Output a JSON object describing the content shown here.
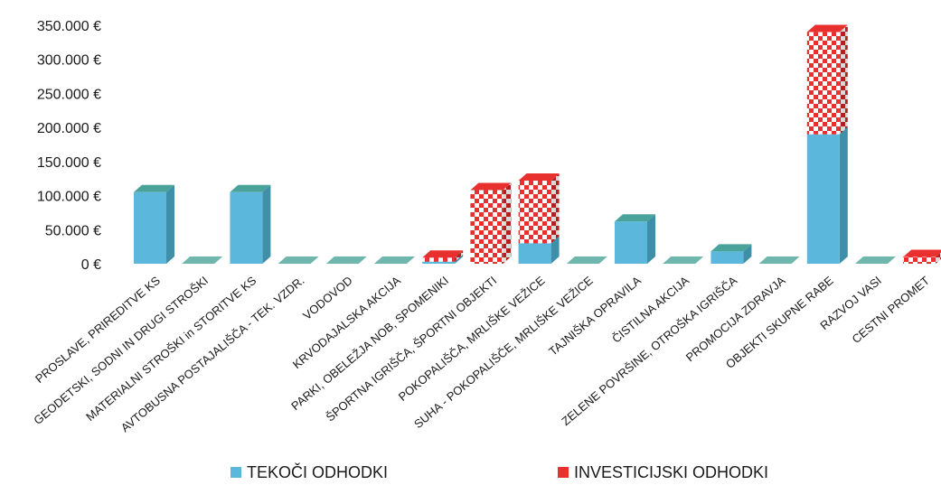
{
  "chart_data": {
    "type": "bar",
    "stacked": true,
    "grid": false,
    "legend_position": "bottom",
    "currency": "€",
    "ylim": [
      0,
      350000
    ],
    "yticks": [
      0,
      50000,
      100000,
      150000,
      200000,
      250000,
      300000,
      350000
    ],
    "ytick_labels": [
      "0 €",
      "50.000 €",
      "100.000 €",
      "150.000 €",
      "200.000 €",
      "250.000 €",
      "300.000 €",
      "350.000 €"
    ],
    "categories": [
      "PROSLAVE, PRIREDITVE KS",
      "GEODETSKI, SODNI IN DRUGI STROŠKI",
      "MATERIALNI STROŠKI in  STORITVE KS",
      "AVTOBUSNA POSTAJALIŠČA - TEK. VZDR.",
      "VODOVOD",
      "KRVODAJALSKA AKCIJA",
      "PARKI, OBELEŽJA NOB, SPOMENIKI",
      "ŠPORTNA IGRIŠČA, ŠPORTNI OBJEKTI",
      "POKOPALIŠČA, MRLIŠKE VEŽICE",
      "SUHA - POKOPALIŠČE, MRLIŠKE VEŽICE",
      "TAJNIŠKA OPRAVILA",
      "ČISTILNA AKCIJA",
      "ZELENE POVRŠINE, OTROŠKA IGRIŠČA",
      "PROMOCIJA ZDRAVJA",
      "OBJEKTI SKUPNE RABE",
      "RAZVOJ VASI",
      "CESTNI PROMET"
    ],
    "series": [
      {
        "name": "TEKOČI ODHODKI",
        "color": "#5bb8dc",
        "pattern": "solid",
        "values": [
          105000,
          0,
          105000,
          0,
          0,
          0,
          3000,
          0,
          30000,
          0,
          62000,
          0,
          18000,
          0,
          190000,
          0,
          0
        ]
      },
      {
        "name": "INVESTICIJSKI ODHODKI",
        "color": "#e8312f",
        "pattern": "checkered",
        "values": [
          0,
          0,
          0,
          0,
          0,
          0,
          6000,
          108000,
          92000,
          0,
          0,
          0,
          0,
          0,
          150000,
          0,
          10000
        ]
      }
    ]
  }
}
